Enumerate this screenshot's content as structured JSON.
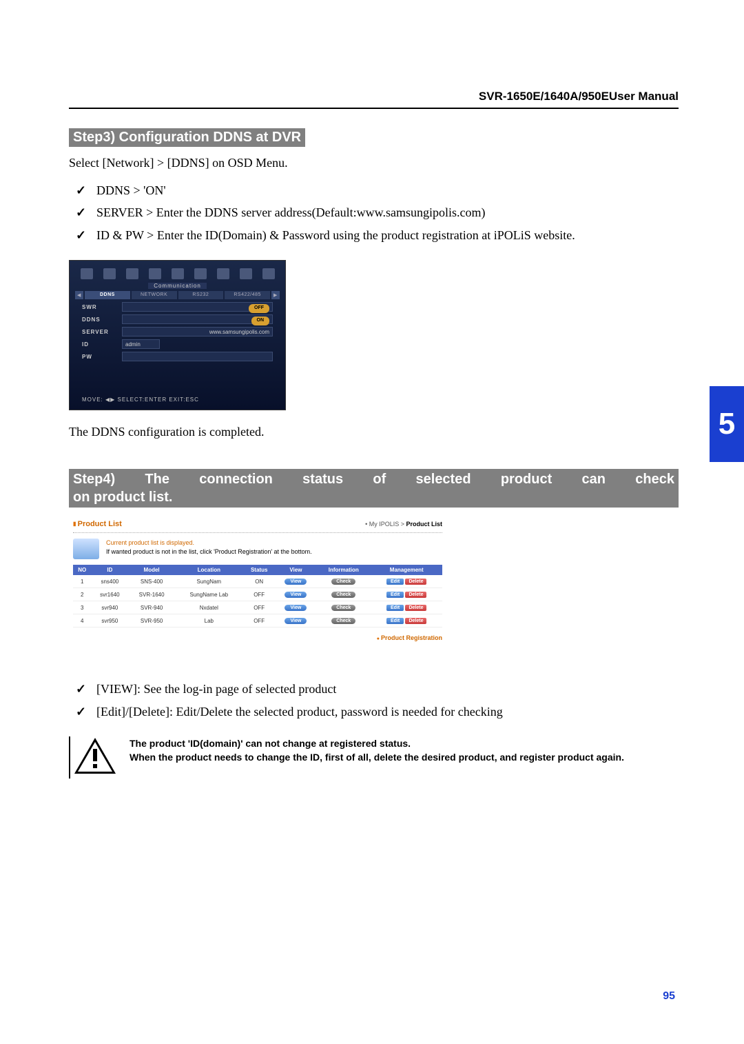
{
  "header": {
    "manual_title": "SVR-1650E/1640A/950EUser Manual"
  },
  "chapter": {
    "number": "5",
    "page_number": "95"
  },
  "step3": {
    "heading": "Step3) Configuration DDNS at DVR",
    "intro": "Select [Network] > [DDNS] on OSD Menu.",
    "bullets": [
      "DDNS > 'ON'",
      "SERVER > Enter the DDNS server address(Default:www.samsungipolis.com)",
      "ID & PW > Enter the ID(Domain) & Password using the product registration at iPOLiS website."
    ],
    "completion": "The DDNS configuration is completed."
  },
  "osd": {
    "comm_label": "Communication",
    "tabs": [
      "DDNS",
      "NETWORK",
      "RS232",
      "RS422/485"
    ],
    "rows": {
      "swr_label": "SWR",
      "swr_value": "OFF",
      "ddns_label": "DDNS",
      "ddns_value": "ON",
      "server_label": "SERVER",
      "server_value": "www.samsungipolis.com",
      "id_label": "ID",
      "id_value": "admin",
      "pw_label": "PW",
      "pw_value": ""
    },
    "footer": "MOVE: ◀▶    SELECT:ENTER    EXIT:ESC"
  },
  "step4": {
    "heading_line1": "Step4) The connection status of selected product can check",
    "heading_line2": "on product list.",
    "bullets": [
      "[VIEW]: See the log-in page of selected product",
      "[Edit]/[Delete]: Edit/Delete the selected product, password is needed for checking"
    ]
  },
  "product_list": {
    "title": "Product List",
    "breadcrumb_prefix": "• My IPOLIS > ",
    "breadcrumb_current": "Product List",
    "desc_line1": "Current product list is displayed.",
    "desc_line2": "If wanted product is not in the list, click 'Product Registration' at the bottom.",
    "columns": [
      "NO",
      "ID",
      "Model",
      "Location",
      "Status",
      "View",
      "Information",
      "Management"
    ],
    "rows": [
      {
        "no": "1",
        "id": "sns400",
        "model": "SNS-400",
        "location": "SungNam",
        "status": "ON"
      },
      {
        "no": "2",
        "id": "svr1640",
        "model": "SVR-1640",
        "location": "SungName Lab",
        "status": "OFF"
      },
      {
        "no": "3",
        "id": "svr940",
        "model": "SVR-940",
        "location": "Nxdatel",
        "status": "OFF"
      },
      {
        "no": "4",
        "id": "svr950",
        "model": "SVR-950",
        "location": "Lab",
        "status": "OFF"
      }
    ],
    "btn_view": "View",
    "btn_check": "Check",
    "btn_edit": "Edit",
    "btn_delete": "Delete",
    "registration": "Product Registration"
  },
  "warning": {
    "line1": "The product 'ID(domain)' can not change at registered status.",
    "line2": "When the product needs to change the ID, first of all, delete the desired product, and register product again."
  }
}
